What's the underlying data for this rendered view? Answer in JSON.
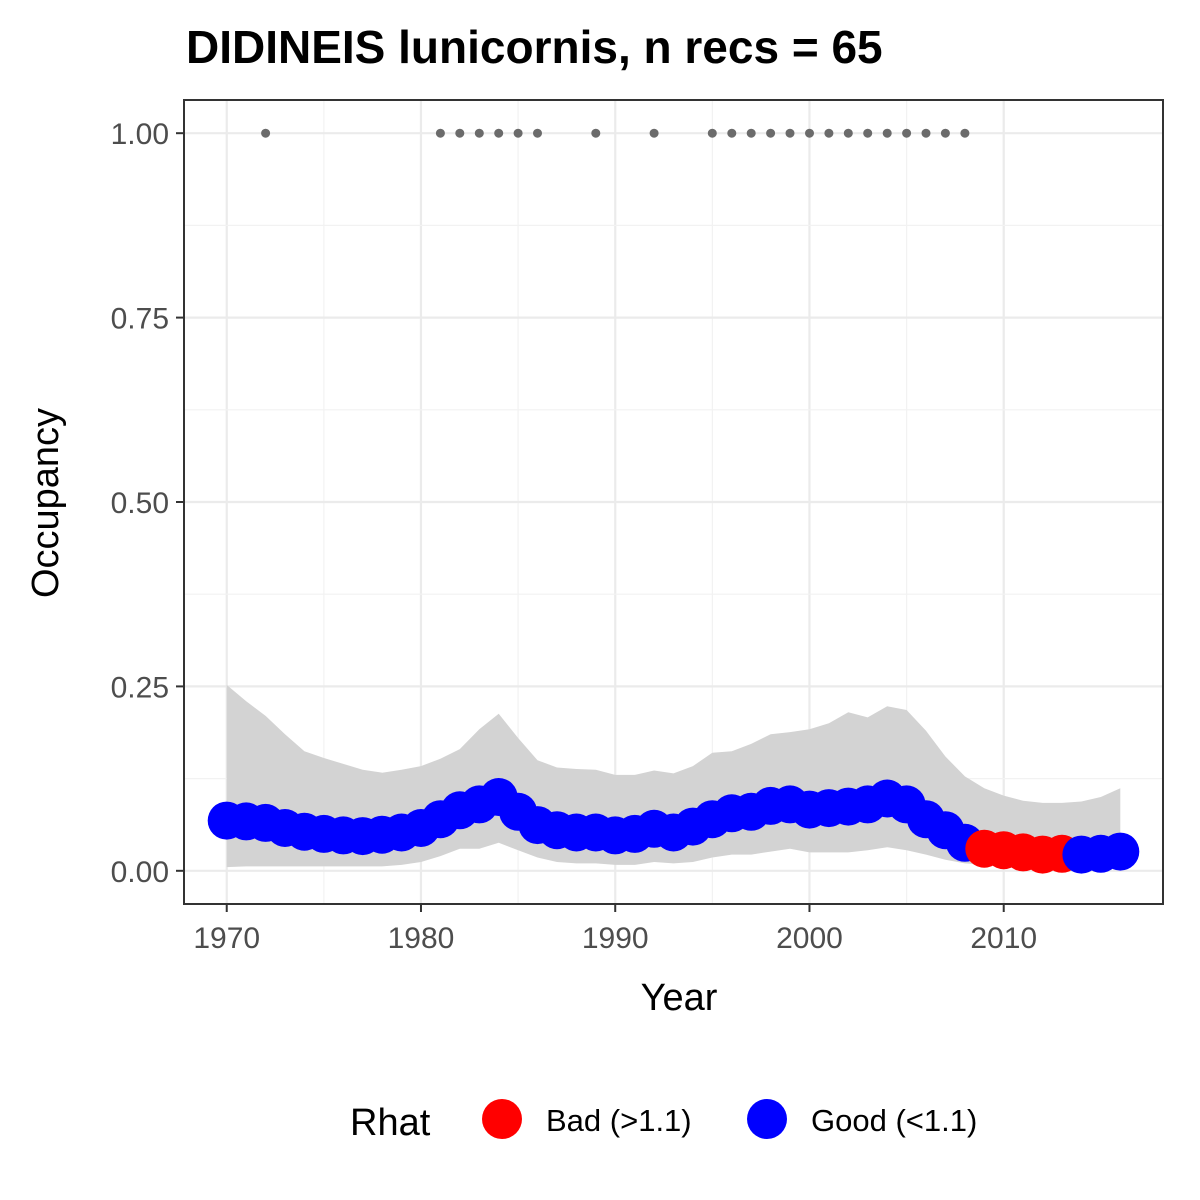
{
  "chart_data": {
    "type": "line",
    "title": "DIDINEIS lunicornis, n recs = 65",
    "xlabel": "Year",
    "ylabel": "Occupancy",
    "xlim": [
      1967.8,
      2018.2
    ],
    "ylim": [
      -0.045,
      1.045
    ],
    "x_ticks": [
      1970,
      1980,
      1990,
      2000,
      2010
    ],
    "x_tick_labels": [
      "1970",
      "1980",
      "1990",
      "2000",
      "2010"
    ],
    "y_ticks": [
      0,
      0.25,
      0.5,
      0.75,
      1.0
    ],
    "y_tick_labels": [
      "0.00",
      "0.25",
      "0.50",
      "0.75",
      "1.00"
    ],
    "grid": true,
    "legend_position": "bottom",
    "legend_title": "Rhat",
    "legend": [
      {
        "label": "Bad (>1.1)",
        "color": "#ff0000"
      },
      {
        "label": "Good (<1.1)",
        "color": "#0000ff"
      }
    ],
    "colors": {
      "bad": "#ff0000",
      "good": "#0000ff",
      "ribbon": "#d3d3d3",
      "records": "#6b6b6b"
    },
    "series": [
      {
        "x": [
          1970,
          1971,
          1972,
          1973,
          1974,
          1975,
          1976,
          1977,
          1978,
          1979,
          1980,
          1981,
          1982,
          1983,
          1984,
          1985,
          1986,
          1987,
          1988,
          1989,
          1990,
          1991,
          1992,
          1993,
          1994,
          1995,
          1996,
          1997,
          1998,
          1999,
          2000,
          2001,
          2002,
          2003,
          2004,
          2005,
          2006,
          2007,
          2008,
          2009,
          2010,
          2011,
          2012,
          2013,
          2014,
          2015,
          2016
        ],
        "values": [
          0.068,
          0.067,
          0.065,
          0.058,
          0.053,
          0.05,
          0.048,
          0.047,
          0.049,
          0.052,
          0.058,
          0.07,
          0.082,
          0.09,
          0.1,
          0.08,
          0.062,
          0.055,
          0.052,
          0.052,
          0.048,
          0.05,
          0.057,
          0.052,
          0.06,
          0.07,
          0.078,
          0.08,
          0.088,
          0.09,
          0.083,
          0.085,
          0.087,
          0.09,
          0.098,
          0.09,
          0.07,
          0.055,
          0.038,
          0.03,
          0.028,
          0.025,
          0.022,
          0.023,
          0.022,
          0.023,
          0.026
        ],
        "lower": [
          0.005,
          0.006,
          0.006,
          0.006,
          0.006,
          0.006,
          0.006,
          0.006,
          0.006,
          0.008,
          0.012,
          0.02,
          0.03,
          0.03,
          0.038,
          0.028,
          0.018,
          0.012,
          0.01,
          0.01,
          0.008,
          0.008,
          0.012,
          0.01,
          0.012,
          0.018,
          0.022,
          0.022,
          0.026,
          0.03,
          0.025,
          0.025,
          0.025,
          0.028,
          0.032,
          0.028,
          0.022,
          0.015,
          0.01,
          0.008,
          0.006,
          0.005,
          0.004,
          0.004,
          0.004,
          0.004,
          0.004
        ],
        "upper": [
          0.252,
          0.23,
          0.21,
          0.185,
          0.162,
          0.153,
          0.145,
          0.137,
          0.133,
          0.137,
          0.142,
          0.152,
          0.165,
          0.192,
          0.213,
          0.18,
          0.15,
          0.14,
          0.138,
          0.137,
          0.13,
          0.13,
          0.136,
          0.132,
          0.142,
          0.16,
          0.162,
          0.172,
          0.185,
          0.188,
          0.192,
          0.2,
          0.215,
          0.208,
          0.223,
          0.218,
          0.19,
          0.155,
          0.128,
          0.112,
          0.102,
          0.095,
          0.092,
          0.092,
          0.094,
          0.1,
          0.112
        ],
        "rhat": [
          "good",
          "good",
          "good",
          "good",
          "good",
          "good",
          "good",
          "good",
          "good",
          "good",
          "good",
          "good",
          "good",
          "good",
          "good",
          "good",
          "good",
          "good",
          "good",
          "good",
          "good",
          "good",
          "good",
          "good",
          "good",
          "good",
          "good",
          "good",
          "good",
          "good",
          "good",
          "good",
          "good",
          "good",
          "good",
          "good",
          "good",
          "good",
          "good",
          "bad",
          "bad",
          "bad",
          "bad",
          "bad",
          "good",
          "good",
          "good"
        ]
      },
      {
        "x": [
          1972,
          1981,
          1982,
          1983,
          1984,
          1985,
          1986,
          1989,
          1992,
          1995,
          1996,
          1997,
          1998,
          1999,
          2000,
          2001,
          2002,
          2003,
          2004,
          2005,
          2006,
          2007,
          2008
        ],
        "values": [
          1,
          1,
          1,
          1,
          1,
          1,
          1,
          1,
          1,
          1,
          1,
          1,
          1,
          1,
          1,
          1,
          1,
          1,
          1,
          1,
          1,
          1,
          1
        ]
      }
    ]
  }
}
